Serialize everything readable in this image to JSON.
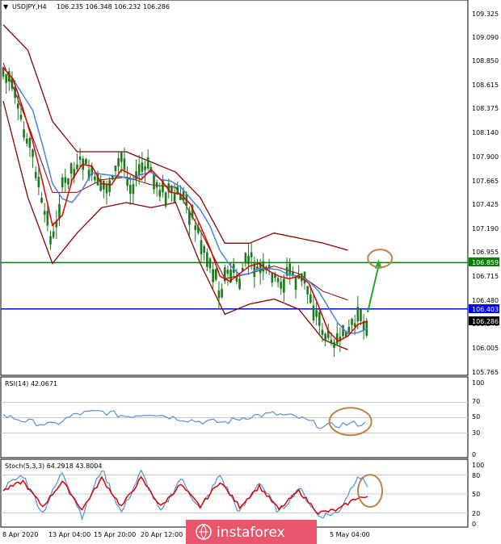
{
  "header": {
    "symbol": "USDJPY,H4",
    "ohlc": "106.235 106.348 106.232 106.286"
  },
  "colors": {
    "bollinger": "#8b0000",
    "fast_ma": "#e00000",
    "slow_ma": "#4a7fe8",
    "candle": "#1a7a1a",
    "green_level": "#008000",
    "blue_level": "#0000ff",
    "annotation": "#c0804a",
    "arrow": "#1fa82a",
    "rsi": "#5b8fd6",
    "stoch_main": "#4a90e0",
    "stoch_signal": "#e00000",
    "logo_bg": "#e8566c"
  },
  "price_axis": {
    "ticks": [
      "109.325",
      "109.090",
      "108.850",
      "108.615",
      "108.375",
      "108.140",
      "107.900",
      "107.665",
      "107.425",
      "107.190",
      "106.955",
      "106.715",
      "106.480",
      "106.240",
      "106.005",
      "105.765"
    ]
  },
  "levels": {
    "green": {
      "label": "106.859",
      "value": 106.859
    },
    "blue": {
      "label": "106.403",
      "value": 106.403
    },
    "current": {
      "label": "106.286",
      "value": 106.286
    }
  },
  "rsi_panel": {
    "title": "RSI(14) 42.0671",
    "ticks": [
      "100",
      "70",
      "50",
      "30",
      "0"
    ]
  },
  "stoch_panel": {
    "title": "Stoch(5,3,3) 64.2918 43.8004",
    "ticks": [
      "100",
      "80",
      "50",
      "20",
      "0"
    ]
  },
  "time_axis": {
    "labels": [
      "8 Apr 2020",
      "13 Apr 04:00",
      "15 Apr 20:00",
      "20 Apr 12:00",
      "5 May 04:00"
    ]
  },
  "watermark": {
    "text": "instaforex"
  },
  "chart_data": [
    {
      "type": "candlestick",
      "title": "USDJPY,H4",
      "ylim": [
        105.765,
        109.325
      ],
      "series": [
        {
          "name": "price",
          "x": [
            0,
            4,
            8,
            12,
            16,
            20,
            24,
            28,
            32,
            36,
            40,
            44,
            48,
            52,
            56,
            60,
            64,
            68,
            72,
            76,
            80,
            84,
            88,
            92,
            96,
            100,
            104,
            108,
            112,
            116,
            120,
            124,
            128,
            132,
            136,
            140,
            144,
            148
          ],
          "y": [
            108.78,
            108.55,
            108.2,
            107.9,
            107.4,
            107.05,
            107.6,
            107.75,
            107.9,
            107.72,
            107.55,
            107.7,
            107.85,
            107.6,
            107.75,
            107.8,
            107.55,
            107.55,
            107.52,
            107.35,
            107.1,
            106.9,
            106.55,
            106.8,
            106.7,
            106.95,
            106.75,
            106.8,
            106.65,
            106.75,
            106.7,
            106.62,
            106.25,
            106.12,
            106.05,
            106.22,
            106.28,
            106.286
          ]
        },
        {
          "name": "upper band",
          "x": [
            0,
            10,
            20,
            30,
            40,
            50,
            60,
            70,
            80,
            90,
            100,
            110,
            120,
            130,
            140
          ],
          "y": [
            109.2,
            108.95,
            108.25,
            107.95,
            107.95,
            107.95,
            107.85,
            107.75,
            107.5,
            107.05,
            107.05,
            107.15,
            107.1,
            107.05,
            106.98
          ]
        },
        {
          "name": "lower band",
          "x": [
            0,
            10,
            20,
            30,
            40,
            50,
            60,
            70,
            80,
            90,
            100,
            110,
            120,
            130,
            140
          ],
          "y": [
            108.45,
            107.5,
            106.85,
            107.15,
            107.4,
            107.45,
            107.4,
            107.45,
            106.85,
            106.35,
            106.45,
            106.5,
            106.4,
            106.1,
            106.0
          ]
        }
      ]
    },
    {
      "type": "line",
      "title": "RSI(14) 42.0671",
      "ylim": [
        0,
        100
      ],
      "x": [
        0,
        10,
        20,
        30,
        40,
        50,
        60,
        70,
        80,
        90,
        100,
        110,
        120,
        130,
        140,
        148
      ],
      "y": [
        53,
        45,
        40,
        55,
        58,
        52,
        56,
        50,
        45,
        44,
        52,
        55,
        50,
        38,
        42,
        42.07
      ]
    },
    {
      "type": "line",
      "title": "Stoch(5,3,3) 64.2918 43.8004",
      "ylim": [
        0,
        100
      ],
      "series": [
        {
          "name": "%K",
          "x": [
            0,
            8,
            16,
            24,
            32,
            40,
            48,
            56,
            64,
            72,
            80,
            88,
            96,
            104,
            112,
            120,
            128,
            136,
            144,
            148
          ],
          "y": [
            60,
            80,
            20,
            85,
            15,
            90,
            20,
            85,
            20,
            75,
            25,
            80,
            20,
            70,
            20,
            60,
            15,
            20,
            80,
            64.29
          ]
        },
        {
          "name": "%D",
          "x": [
            0,
            8,
            16,
            24,
            32,
            40,
            48,
            56,
            64,
            72,
            80,
            88,
            96,
            104,
            112,
            120,
            128,
            136,
            144,
            148
          ],
          "y": [
            55,
            70,
            30,
            70,
            25,
            75,
            30,
            75,
            30,
            65,
            30,
            70,
            30,
            62,
            25,
            55,
            20,
            25,
            45,
            43.8
          ]
        }
      ]
    }
  ]
}
